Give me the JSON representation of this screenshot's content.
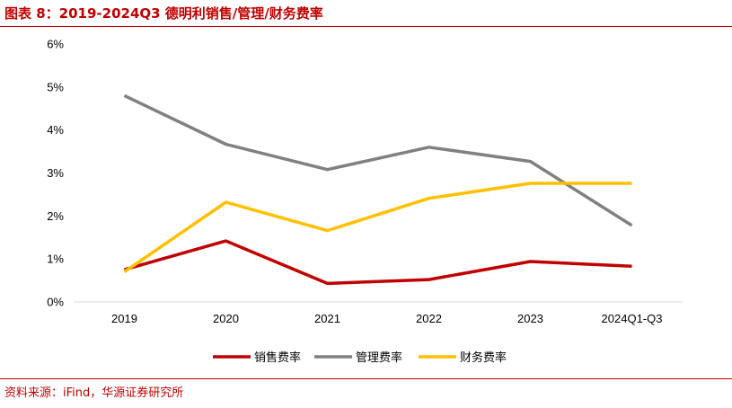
{
  "figure": {
    "title": "图表 8：2019-2024Q3 德明利销售/管理/财务费率",
    "source": "资料来源：iFind，华源证券研究所"
  },
  "colors": {
    "accent": "#c00000",
    "axis": "#d9d9d9"
  },
  "chart_data": {
    "type": "line",
    "title": "",
    "xlabel": "",
    "ylabel": "",
    "categories": [
      "2019",
      "2020",
      "2021",
      "2022",
      "2023",
      "2024Q1-Q3"
    ],
    "ylim": [
      0,
      6
    ],
    "yticks": [
      0,
      1,
      2,
      3,
      4,
      5,
      6
    ],
    "ytick_labels": [
      "0%",
      "1%",
      "2%",
      "3%",
      "4%",
      "5%",
      "6%"
    ],
    "y_unit": "%",
    "grid": false,
    "legend_position": "bottom",
    "series": [
      {
        "name": "销售费率",
        "color": "#c00000",
        "values": [
          0.75,
          1.42,
          0.43,
          0.52,
          0.94,
          0.83
        ]
      },
      {
        "name": "管理费率",
        "color": "#808080",
        "values": [
          4.8,
          3.67,
          3.08,
          3.6,
          3.27,
          1.78
        ]
      },
      {
        "name": "财务费率",
        "color": "#ffc000",
        "values": [
          0.7,
          2.32,
          1.66,
          2.41,
          2.76,
          2.76
        ]
      }
    ]
  }
}
